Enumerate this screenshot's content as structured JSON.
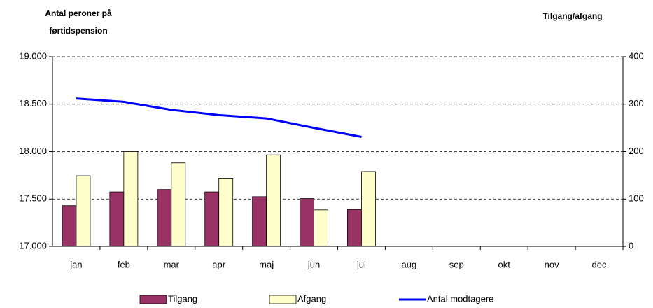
{
  "chart_data": {
    "type": "bar-line",
    "ylabel": [
      "Antal peroner på",
      "førtidspension"
    ],
    "y2label": "Tilgang/afgang",
    "categories": [
      "jan",
      "feb",
      "mar",
      "apr",
      "maj",
      "jun",
      "jul",
      "aug",
      "sep",
      "okt",
      "nov",
      "dec"
    ],
    "ylim": [
      17000,
      19000
    ],
    "yticks": [
      {
        "value": 17000,
        "label": "17.000"
      },
      {
        "value": 17500,
        "label": "17.500"
      },
      {
        "value": 18000,
        "label": "18.000"
      },
      {
        "value": 18500,
        "label": "18.500"
      },
      {
        "value": 19000,
        "label": "19.000"
      }
    ],
    "y2lim": [
      0,
      400
    ],
    "y2ticks": [
      0,
      100,
      200,
      300,
      400
    ],
    "grid": true,
    "series": [
      {
        "name": "Tilgang",
        "type": "bar",
        "axis": "y2",
        "color": "#993366",
        "values": [
          86,
          115,
          120,
          115,
          105,
          101,
          78,
          null,
          null,
          null,
          null,
          null
        ]
      },
      {
        "name": "Afgang",
        "type": "bar",
        "axis": "y2",
        "color": "#ffffcc",
        "values": [
          149,
          200,
          176,
          144,
          193,
          77,
          158,
          null,
          null,
          null,
          null,
          null
        ]
      },
      {
        "name": "Antal modtagere",
        "type": "line",
        "axis": "y",
        "color": "#0000ff",
        "values": [
          18560,
          18525,
          18440,
          18385,
          18350,
          18250,
          18155,
          null,
          null,
          null,
          null,
          null
        ]
      }
    ]
  }
}
